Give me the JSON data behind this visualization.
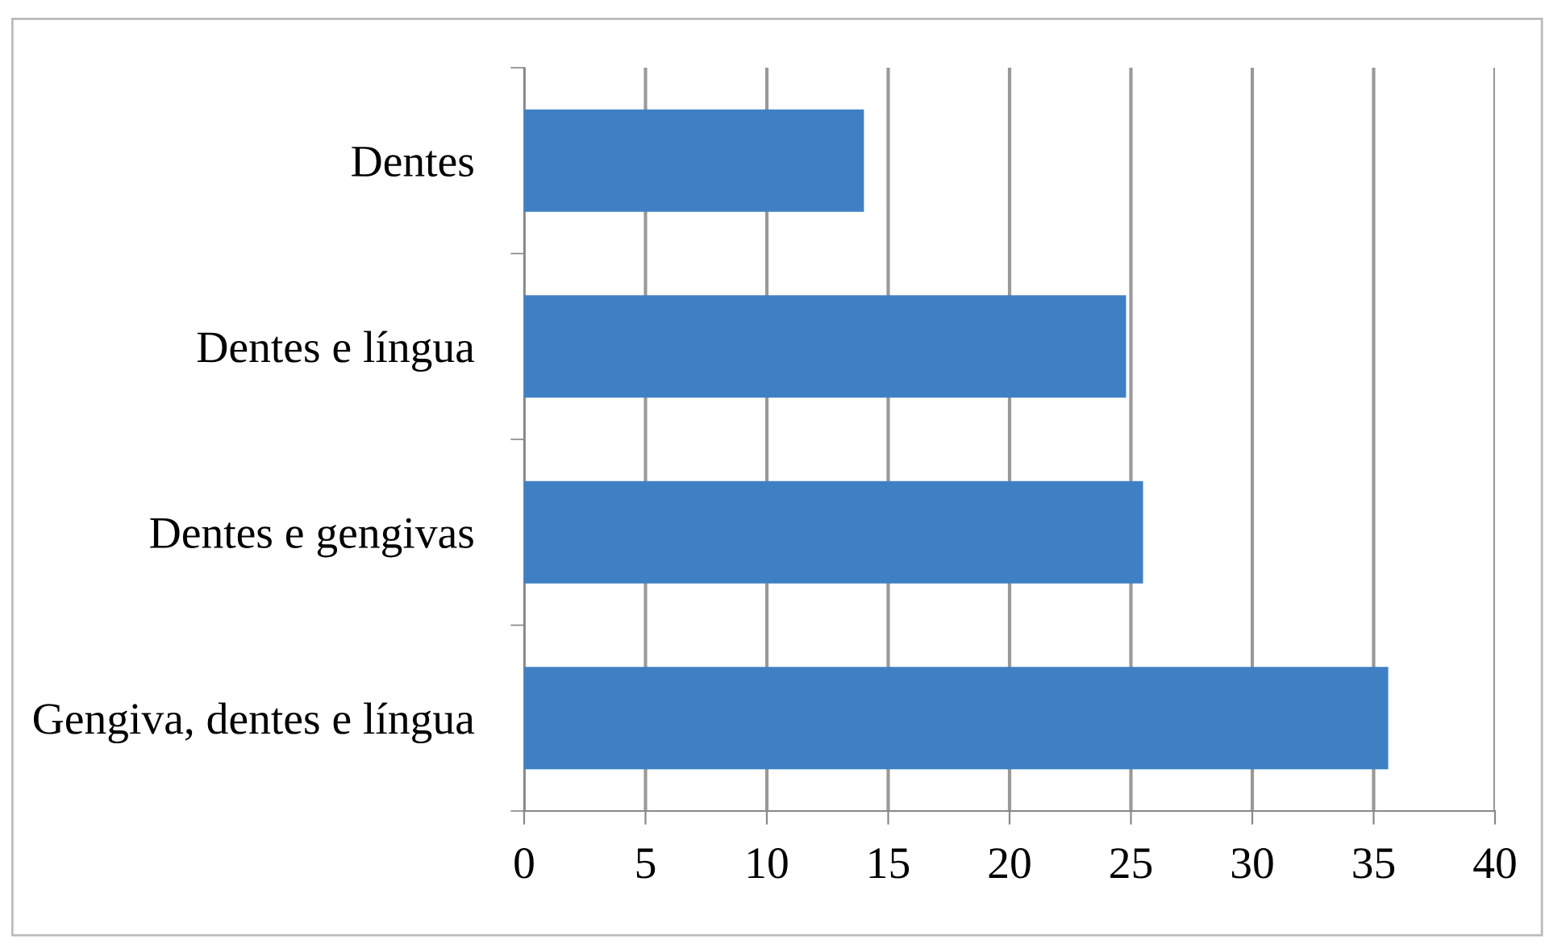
{
  "chart_data": {
    "type": "bar",
    "orientation": "horizontal",
    "categories": [
      "Dentes",
      "Dentes e língua",
      "Dentes e gengivas",
      "Gengiva, dentes e língua"
    ],
    "values": [
      14.0,
      24.8,
      25.5,
      35.6
    ],
    "color": "#3f80c4",
    "xlim": [
      0,
      40
    ],
    "xticks": [
      0,
      5,
      10,
      15,
      20,
      25,
      30,
      35,
      40
    ],
    "grid": "x"
  }
}
